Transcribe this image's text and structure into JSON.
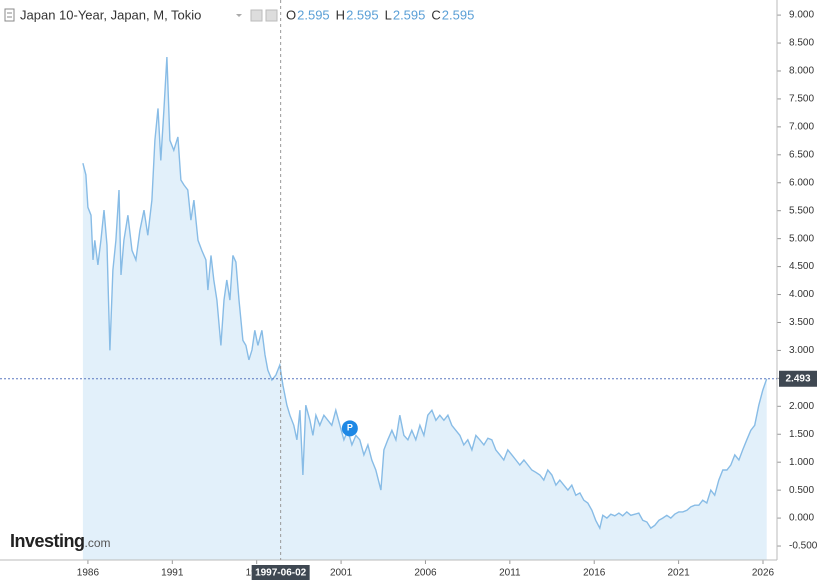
{
  "chart_data": {
    "type": "area",
    "title": "Japan 10-Year, Japan, M, Tokio",
    "ohlc": [
      {
        "key": "O",
        "value": 2.595
      },
      {
        "key": "H",
        "value": 2.595
      },
      {
        "key": "L",
        "value": 2.595
      },
      {
        "key": "C",
        "value": 2.595
      }
    ],
    "brand": "Investing",
    "brand_suffix": ".com",
    "crosshair_label": "1997-06-02",
    "current_value": 2.493,
    "annotation": {
      "text": "P",
      "x": 2001.4
    },
    "color": "#88bce6",
    "fill_color": "#e2f0fa",
    "price_line_color": "#5b79c0",
    "xlim": [
      1980.79,
      2026.83
    ],
    "ylim": [
      -0.75,
      9.27
    ],
    "xticks": [
      1986,
      1991,
      1996,
      2001,
      2006,
      2011,
      2016,
      2021,
      2026
    ],
    "yticks": [
      {
        "value": 9,
        "label": "9.000"
      },
      {
        "value": 8.5,
        "label": "8.500"
      },
      {
        "value": 8,
        "label": "8.000"
      },
      {
        "value": 7.5,
        "label": "7.500"
      },
      {
        "value": 7,
        "label": "7.000"
      },
      {
        "value": 6.5,
        "label": "6.500"
      },
      {
        "value": 6,
        "label": "6.000"
      },
      {
        "value": 5.5,
        "label": "5.500"
      },
      {
        "value": 5,
        "label": "5.000"
      },
      {
        "value": 4.5,
        "label": "4.500"
      },
      {
        "value": 4,
        "label": "4.000"
      },
      {
        "value": 3.5,
        "label": "3.500"
      },
      {
        "value": 3,
        "label": "3.000"
      },
      {
        "value": 2.5,
        "label": "2.500"
      },
      {
        "value": 2,
        "label": "2.000"
      },
      {
        "value": 1.5,
        "label": "1.500"
      },
      {
        "value": 1,
        "label": "1.000"
      },
      {
        "value": 0.5,
        "label": "0.500"
      },
      {
        "value": 0,
        "label": "0.000"
      },
      {
        "value": -0.5,
        "label": "-0.500"
      }
    ],
    "x": [
      1985.7,
      1985.88,
      1986.0,
      1986.18,
      1986.3,
      1986.41,
      1986.59,
      1986.77,
      1986.95,
      1987.13,
      1987.3,
      1987.48,
      1987.66,
      1987.84,
      1987.96,
      1988.13,
      1988.37,
      1988.61,
      1988.84,
      1989.08,
      1989.32,
      1989.55,
      1989.79,
      1989.97,
      1990.15,
      1990.32,
      1990.5,
      1990.68,
      1990.86,
      1991.09,
      1991.33,
      1991.51,
      1991.69,
      1991.92,
      1992.1,
      1992.28,
      1992.52,
      1992.75,
      1992.99,
      1993.11,
      1993.29,
      1993.46,
      1993.64,
      1993.88,
      1994.06,
      1994.23,
      1994.41,
      1994.59,
      1994.77,
      1994.95,
      1995.18,
      1995.36,
      1995.54,
      1995.72,
      1995.89,
      1996.07,
      1996.31,
      1996.49,
      1996.66,
      1996.9,
      1997.14,
      1997.37,
      1997.55,
      1997.79,
      1997.97,
      1998.2,
      1998.38,
      1998.56,
      1998.74,
      1998.91,
      1999.15,
      1999.33,
      1999.51,
      1999.74,
      1999.98,
      2000.22,
      2000.45,
      2000.69,
      2000.93,
      2001.17,
      2001.4,
      2001.64,
      2001.88,
      2002.11,
      2002.35,
      2002.59,
      2002.82,
      2003.06,
      2003.36,
      2003.54,
      2003.77,
      2004.01,
      2004.25,
      2004.48,
      2004.72,
      2004.96,
      2005.19,
      2005.43,
      2005.67,
      2005.91,
      2006.14,
      2006.38,
      2006.62,
      2006.85,
      2007.09,
      2007.33,
      2007.56,
      2007.8,
      2008.04,
      2008.27,
      2008.51,
      2008.75,
      2008.99,
      2009.22,
      2009.46,
      2009.7,
      2009.93,
      2010.17,
      2010.41,
      2010.64,
      2010.88,
      2011.12,
      2011.36,
      2011.59,
      2011.83,
      2012.07,
      2012.3,
      2012.54,
      2012.78,
      2013.01,
      2013.25,
      2013.49,
      2013.73,
      2013.96,
      2014.2,
      2014.44,
      2014.67,
      2014.91,
      2015.15,
      2015.38,
      2015.62,
      2015.86,
      2016.09,
      2016.33,
      2016.51,
      2016.75,
      2016.98,
      2017.22,
      2017.46,
      2017.69,
      2017.93,
      2018.17,
      2018.41,
      2018.64,
      2018.88,
      2019.12,
      2019.35,
      2019.59,
      2019.83,
      2020.06,
      2020.3,
      2020.54,
      2020.77,
      2021.01,
      2021.25,
      2021.49,
      2021.72,
      2021.96,
      2022.2,
      2022.43,
      2022.67,
      2022.91,
      2023.14,
      2023.38,
      2023.62,
      2023.86,
      2024.09,
      2024.33,
      2024.57,
      2024.8,
      2025.04,
      2025.28,
      2025.51,
      2025.75,
      2025.99,
      2026.22
    ],
    "values": [
      6.35,
      6.14,
      5.56,
      5.42,
      4.62,
      4.97,
      4.53,
      4.97,
      5.51,
      4.88,
      3.0,
      4.44,
      4.97,
      5.87,
      4.35,
      4.97,
      5.42,
      4.79,
      4.62,
      5.15,
      5.51,
      5.06,
      5.69,
      6.76,
      7.33,
      6.4,
      7.3,
      8.25,
      6.76,
      6.58,
      6.82,
      6.05,
      5.96,
      5.87,
      5.33,
      5.69,
      4.97,
      4.79,
      4.62,
      4.08,
      4.7,
      4.26,
      3.9,
      3.09,
      3.9,
      4.26,
      3.9,
      4.7,
      4.58,
      3.9,
      3.18,
      3.09,
      2.83,
      3.01,
      3.36,
      3.09,
      3.36,
      2.92,
      2.65,
      2.47,
      2.56,
      2.74,
      2.38,
      2.02,
      1.84,
      1.66,
      1.4,
      1.93,
      0.77,
      2.02,
      1.75,
      1.48,
      1.84,
      1.66,
      1.84,
      1.75,
      1.66,
      1.93,
      1.66,
      1.4,
      1.57,
      1.31,
      1.48,
      1.4,
      1.13,
      1.31,
      1.04,
      0.86,
      0.5,
      1.22,
      1.4,
      1.57,
      1.4,
      1.84,
      1.48,
      1.4,
      1.57,
      1.4,
      1.66,
      1.48,
      1.84,
      1.93,
      1.75,
      1.84,
      1.75,
      1.84,
      1.66,
      1.57,
      1.48,
      1.31,
      1.4,
      1.22,
      1.48,
      1.4,
      1.31,
      1.43,
      1.4,
      1.22,
      1.13,
      1.04,
      1.22,
      1.13,
      1.04,
      0.95,
      1.04,
      0.95,
      0.86,
      0.82,
      0.77,
      0.68,
      0.86,
      0.77,
      0.59,
      0.68,
      0.59,
      0.5,
      0.59,
      0.41,
      0.45,
      0.32,
      0.27,
      0.14,
      -0.04,
      -0.18,
      0.05,
      0.0,
      0.07,
      0.04,
      0.09,
      0.04,
      0.11,
      0.05,
      0.07,
      0.09,
      -0.04,
      -0.07,
      -0.18,
      -0.13,
      -0.04,
      0.0,
      0.05,
      0.0,
      0.07,
      0.11,
      0.11,
      0.14,
      0.2,
      0.23,
      0.23,
      0.32,
      0.27,
      0.5,
      0.41,
      0.68,
      0.86,
      0.86,
      0.95,
      1.13,
      1.04,
      1.22,
      1.4,
      1.57,
      1.66,
      2.02,
      2.29,
      2.493
    ]
  }
}
